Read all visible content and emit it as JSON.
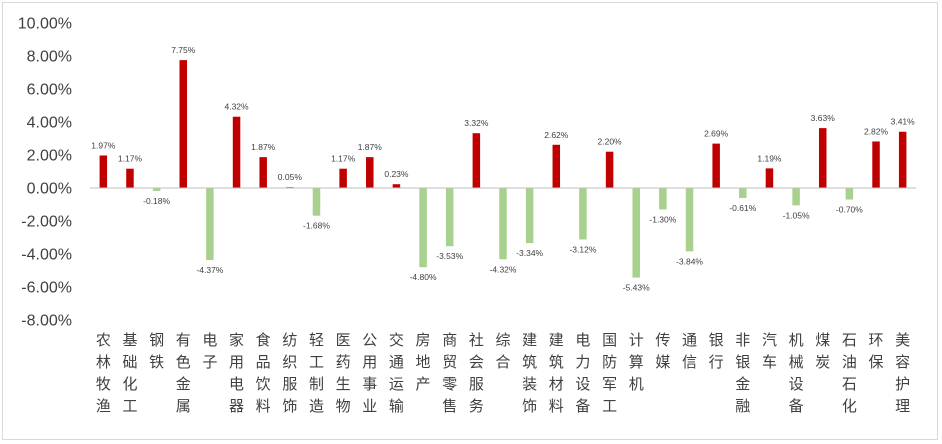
{
  "chart_data": {
    "type": "bar",
    "title": "",
    "xlabel": "",
    "ylabel": "",
    "ylim": [
      -0.08,
      0.1
    ],
    "yticks": [
      -0.08,
      -0.06,
      -0.04,
      -0.02,
      0.0,
      0.02,
      0.04,
      0.06,
      0.08,
      0.1
    ],
    "ytick_labels": [
      "-8.00%",
      "-6.00%",
      "-4.00%",
      "-2.00%",
      "0.00%",
      "2.00%",
      "4.00%",
      "6.00%",
      "8.00%",
      "10.00%"
    ],
    "positive_color": "#c00000",
    "negative_color": "#a9d18e",
    "grid": false,
    "legend": "none",
    "categories": [
      "农林牧渔",
      "基础化工",
      "钢铁",
      "有色金属",
      "电子",
      "家用电器",
      "食品饮料",
      "纺织服饰",
      "轻工制造",
      "医药生物",
      "公用事业",
      "交通运输",
      "房地产",
      "商贸零售",
      "社会服务",
      "综合",
      "建筑装饰",
      "建筑材料",
      "电力设备",
      "国防军工",
      "计算机",
      "传媒",
      "通信",
      "银行",
      "非银金融",
      "汽车",
      "机械设备",
      "煤炭",
      "石油石化",
      "环保",
      "美容护理"
    ],
    "values": [
      0.0197,
      0.0117,
      -0.0018,
      0.0775,
      -0.0437,
      0.0432,
      0.0187,
      0.0005,
      -0.0168,
      0.0117,
      0.0187,
      0.0023,
      -0.048,
      -0.0353,
      0.0332,
      -0.0432,
      -0.0334,
      0.0262,
      -0.0312,
      0.022,
      -0.0543,
      -0.013,
      -0.0384,
      0.0269,
      -0.0061,
      0.0119,
      -0.0105,
      0.0363,
      -0.007,
      0.0282,
      0.0341
    ],
    "data_labels": [
      "1.97%",
      "1.17%",
      "-0.18%",
      "7.75%",
      "-4.37%",
      "4.32%",
      "1.87%",
      "0.05%",
      "-1.68%",
      "1.17%",
      "1.87%",
      "0.23%",
      "-4.80%",
      "-3.53%",
      "3.32%",
      "-4.32%",
      "-3.34%",
      "2.62%",
      "-3.12%",
      "2.20%",
      "-5.43%",
      "-1.30%",
      "-3.84%",
      "2.69%",
      "-0.61%",
      "1.19%",
      "-1.05%",
      "3.63%",
      "-0.70%",
      "2.82%",
      "3.41%"
    ]
  }
}
